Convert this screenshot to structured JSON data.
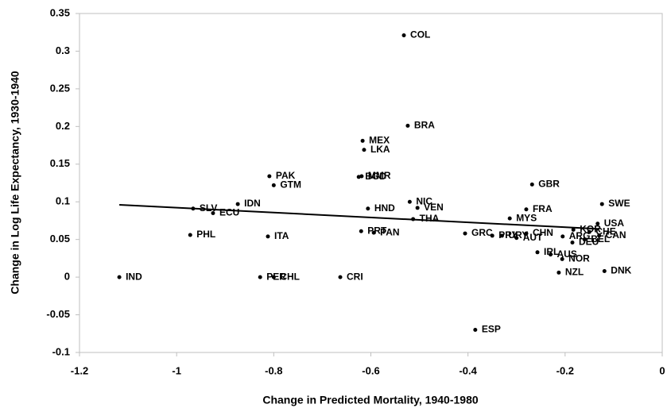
{
  "chart_data": {
    "type": "scatter",
    "x_label": "Change in Predicted Mortality, 1940-1980",
    "y_label": "Change in Log Life Expectancy, 1930-1940",
    "xlim": [
      -1.2,
      0
    ],
    "xticks": [
      -1.2,
      -1,
      -0.8,
      -0.6,
      -0.4,
      -0.2,
      0
    ],
    "ylim": [
      -0.1,
      0.35
    ],
    "yticks": [
      -0.1,
      -0.05,
      0,
      0.05,
      0.1,
      0.15,
      0.2,
      0.25,
      0.3,
      0.35
    ],
    "grid": false,
    "color": "#000000",
    "labels": [
      "COL",
      "BRA",
      "MEX",
      "LKA",
      "PAK",
      "GTM",
      "MMR",
      "BGD",
      "GBR",
      "SWE",
      "NIC",
      "VEN",
      "THA",
      "HND",
      "IDN",
      "SLV",
      "ECU",
      "PHL",
      "ITA",
      "PRT",
      "PAN",
      "FRA",
      "MYS",
      "USA",
      "GRC",
      "PRY",
      "URY",
      "AUT",
      "CHN",
      "KOR",
      "CHE",
      "ARG",
      "BEL",
      "CAN",
      "DEU",
      "IRL",
      "AUS",
      "NOR",
      "NZL",
      "DNK",
      "IND",
      "PER",
      "CHL",
      "CRI",
      "ESP"
    ],
    "x": [
      -0.532,
      -0.524,
      -0.617,
      -0.614,
      -0.809,
      -0.8,
      -0.619,
      -0.625,
      -0.268,
      -0.124,
      -0.52,
      -0.504,
      -0.513,
      -0.606,
      -0.874,
      -0.966,
      -0.925,
      -0.972,
      -0.812,
      -0.62,
      -0.594,
      -0.28,
      -0.314,
      -0.133,
      -0.406,
      -0.35,
      -0.33,
      -0.3,
      -0.28,
      -0.183,
      -0.15,
      -0.205,
      -0.16,
      -0.13,
      -0.185,
      -0.257,
      -0.23,
      -0.206,
      -0.213,
      -0.119,
      -1.118,
      -0.828,
      -0.8,
      -0.663,
      -0.385
    ],
    "y": [
      0.321,
      0.201,
      0.181,
      0.169,
      0.134,
      0.122,
      0.134,
      0.133,
      0.123,
      0.097,
      0.1,
      0.092,
      0.077,
      0.091,
      0.097,
      0.091,
      0.085,
      0.056,
      0.054,
      0.061,
      0.059,
      0.09,
      0.078,
      0.071,
      0.058,
      0.055,
      0.055,
      0.052,
      0.058,
      0.063,
      0.06,
      0.054,
      0.05,
      0.055,
      0.046,
      0.033,
      0.03,
      0.024,
      0.006,
      0.008,
      0,
      0,
      0,
      0,
      -0.07
    ],
    "trend": {
      "x": [
        -1.118,
        -0.13
      ],
      "y": [
        0.096,
        0.064
      ]
    }
  }
}
